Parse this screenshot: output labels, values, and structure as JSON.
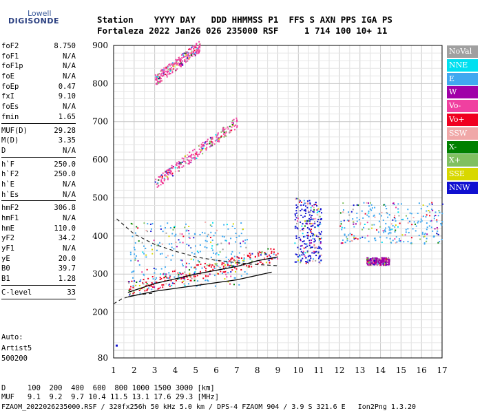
{
  "logo": {
    "line1": "Lowell",
    "line2": "DIGISONDE"
  },
  "header": {
    "labels": "Station    YYYY DAY   DDD HHMMSS P1  FFS S AXN PPS IGA PS",
    "values": "Fortaleza 2022 Jan26 026 235000 RSF     1 714 100 10+ 11"
  },
  "side_groups": [
    [
      [
        "foF2",
        "8.750"
      ],
      [
        "foF1",
        "N/A"
      ],
      [
        "foF1p",
        "N/A"
      ],
      [
        "foE",
        "N/A"
      ],
      [
        "foEp",
        "0.47"
      ],
      [
        "fxI",
        "9.10"
      ],
      [
        "foEs",
        "N/A"
      ],
      [
        "fmin",
        "1.65"
      ]
    ],
    [
      [
        "MUF(D)",
        "29.28"
      ],
      [
        "M(D)",
        "3.35"
      ],
      [
        "D",
        "N/A"
      ]
    ],
    [
      [
        "h`F",
        "250.0"
      ],
      [
        "h`F2",
        "250.0"
      ],
      [
        "h`E",
        "N/A"
      ],
      [
        "h`Es",
        "N/A"
      ]
    ],
    [
      [
        "hmF2",
        "306.8"
      ],
      [
        "hmF1",
        "N/A"
      ],
      [
        "hmE",
        "110.0"
      ],
      [
        "yF2",
        "34.2"
      ],
      [
        "yF1",
        "N/A"
      ],
      [
        "yE",
        "20.0"
      ],
      [
        "B0",
        "39.7"
      ],
      [
        "B1",
        "1.28"
      ]
    ],
    [
      [
        "C-level",
        "33"
      ]
    ]
  ],
  "auto": {
    "label": "Auto:",
    "line1": "Artist5",
    "line2": "500200"
  },
  "legend": [
    {
      "label": "NoVal",
      "color": "#a0a0a0"
    },
    {
      "label": "NNE",
      "color": "#00e0f0"
    },
    {
      "label": "E",
      "color": "#40a8f0"
    },
    {
      "label": "W",
      "color": "#a000a8"
    },
    {
      "label": "Vo-",
      "color": "#f040a0"
    },
    {
      "label": "Vo+",
      "color": "#f00020"
    },
    {
      "label": "SSW",
      "color": "#f0a8a8"
    },
    {
      "label": "X-",
      "color": "#008000"
    },
    {
      "label": "X+",
      "color": "#80c060"
    },
    {
      "label": "SSE",
      "color": "#d8d800"
    },
    {
      "label": "NNW",
      "color": "#1010d0"
    }
  ],
  "footer": {
    "d_line": "D     100  200  400  600  800 1000 1500 3000 [km]",
    "muf_line": "MUF   9.1  9.2  9.7 10.4 11.5 13.1 17.6 29.3 [MHz]",
    "file_line": "FZAOM_2022026235000.RSF / 320fx256h 50 kHz 5.0 km / DPS-4 FZAOM 904 / 3.9 S 321.6 E   Ion2Png 1.3.20"
  },
  "chart_data": {
    "type": "scatter",
    "x_ticks": [
      "1",
      "2",
      "3",
      "4",
      "5",
      "6",
      "7",
      "8",
      "9",
      "10",
      "11",
      "12",
      "13",
      "14",
      "15",
      "16",
      "17"
    ],
    "y_ticks": [
      "80",
      "200",
      "300",
      "400",
      "500",
      "600",
      "700",
      "800",
      "900"
    ],
    "xlim": [
      1,
      17
    ],
    "ylim": [
      80,
      900
    ],
    "grid": true,
    "clusters": [
      {
        "color": "#f00020",
        "x": [
          1.7,
          9.0
        ],
        "y": [
          255,
          360
        ],
        "trace": "o-mode F trace"
      },
      {
        "color": "#40a8f0",
        "x": [
          1.8,
          7.5
        ],
        "y": [
          270,
          440
        ],
        "trace": "oblique echoes"
      },
      {
        "color": "#f040a0",
        "x": [
          3.0,
          7.0
        ],
        "y": [
          540,
          700
        ],
        "trace": "second hop"
      },
      {
        "color": "#f040a0",
        "x": [
          3.0,
          5.2
        ],
        "y": [
          810,
          900
        ],
        "trace": "third hop"
      },
      {
        "color": "#1010d0",
        "x": [
          9.8,
          11.1
        ],
        "y": [
          330,
          500
        ],
        "trace": "spread F"
      },
      {
        "color": "#40a8f0",
        "x": [
          12.0,
          17.0
        ],
        "y": [
          380,
          490
        ],
        "trace": "spread F high"
      },
      {
        "color": "#a000a8",
        "x": [
          13.3,
          14.4
        ],
        "y": [
          325,
          345
        ],
        "trace": "patch"
      }
    ],
    "profile_upper": [
      [
        1.15,
        445
      ],
      [
        2,
        405
      ],
      [
        3,
        378
      ],
      [
        4,
        360
      ],
      [
        5,
        345
      ],
      [
        6,
        336
      ],
      [
        7,
        330
      ],
      [
        8,
        325
      ],
      [
        9,
        322
      ]
    ],
    "profile_lower": [
      [
        1.0,
        222
      ],
      [
        1.4,
        235
      ],
      [
        2,
        245
      ],
      [
        3,
        250
      ]
    ],
    "trace_upper": [
      [
        1.7,
        252
      ],
      [
        3,
        275
      ],
      [
        5,
        300
      ],
      [
        7,
        320
      ],
      [
        8,
        335
      ],
      [
        9,
        345
      ]
    ],
    "trace_lower": [
      [
        1.7,
        240
      ],
      [
        3,
        255
      ],
      [
        5,
        270
      ],
      [
        7,
        285
      ],
      [
        8.7,
        305
      ]
    ]
  }
}
